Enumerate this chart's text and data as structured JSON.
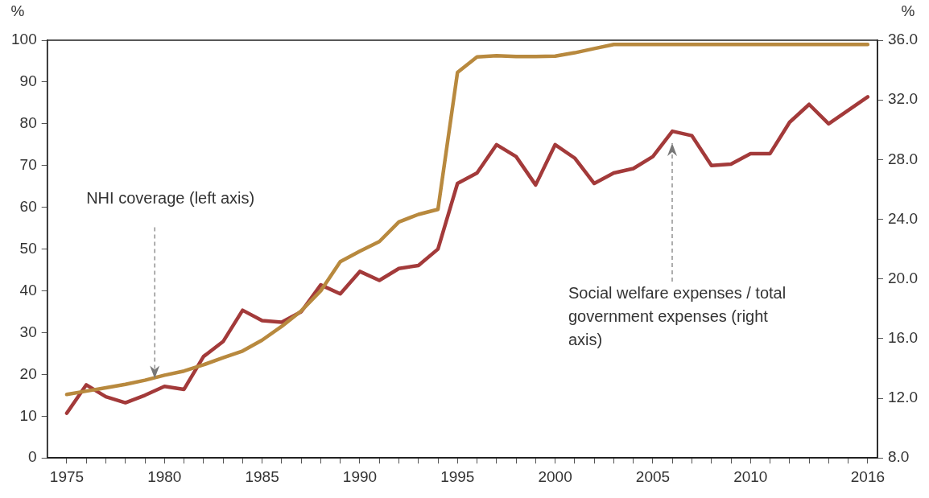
{
  "chart_data": {
    "type": "line",
    "x": [
      1975,
      1976,
      1977,
      1978,
      1979,
      1980,
      1981,
      1982,
      1983,
      1984,
      1985,
      1986,
      1987,
      1988,
      1989,
      1990,
      1991,
      1992,
      1993,
      1994,
      1995,
      1996,
      1997,
      1998,
      1999,
      2000,
      2001,
      2002,
      2003,
      2004,
      2005,
      2006,
      2007,
      2008,
      2009,
      2010,
      2011,
      2012,
      2013,
      2014,
      2015,
      2016
    ],
    "series": [
      {
        "color": "#b8893e",
        "values": [
          15.2,
          16.0,
          16.8,
          17.6,
          18.6,
          19.8,
          20.8,
          22.3,
          24.0,
          25.6,
          28.2,
          31.5,
          35.2,
          40.0,
          47.0,
          49.5,
          51.8,
          56.5,
          58.3,
          59.5,
          92.3,
          96.0,
          96.3,
          96.1,
          96.1,
          96.2,
          97.0,
          98.0,
          99.0,
          99.0,
          99.0,
          99.0,
          99.0,
          99.0,
          99.0,
          99.0,
          99.0,
          99.0,
          99.0,
          99.0,
          99.0,
          99.0
        ]
      },
      {
        "color": "#a33a3a",
        "axis": "y2",
        "values": [
          11.0,
          12.9,
          12.1,
          11.7,
          12.2,
          12.8,
          12.6,
          14.8,
          15.8,
          17.9,
          17.2,
          17.1,
          17.8,
          19.6,
          19.0,
          20.5,
          19.9,
          20.7,
          20.9,
          22.0,
          26.4,
          27.1,
          29.0,
          28.2,
          26.3,
          29.0,
          28.1,
          26.4,
          27.1,
          27.4,
          28.2,
          29.9,
          29.6,
          27.6,
          27.7,
          28.4,
          28.4,
          30.5,
          31.7,
          30.4,
          31.3,
          32.2
        ]
      }
    ],
    "ylabel": "%",
    "y2label": "%",
    "xlim": [
      1974,
      2016.5
    ],
    "xticks": [
      1975,
      {
        "value": 1976,
        "label": null
      },
      {
        "value": 1977,
        "label": null
      },
      {
        "value": 1978,
        "label": null
      },
      {
        "value": 1979,
        "label": null
      },
      1980,
      {
        "value": 1981,
        "label": null
      },
      {
        "value": 1982,
        "label": null
      },
      {
        "value": 1983,
        "label": null
      },
      {
        "value": 1984,
        "label": null
      },
      1985,
      {
        "value": 1986,
        "label": null
      },
      {
        "value": 1987,
        "label": null
      },
      {
        "value": 1988,
        "label": null
      },
      {
        "value": 1989,
        "label": null
      },
      1990,
      {
        "value": 1991,
        "label": null
      },
      {
        "value": 1992,
        "label": null
      },
      {
        "value": 1993,
        "label": null
      },
      {
        "value": 1994,
        "label": null
      },
      1995,
      {
        "value": 1996,
        "label": null
      },
      {
        "value": 1997,
        "label": null
      },
      {
        "value": 1998,
        "label": null
      },
      {
        "value": 1999,
        "label": null
      },
      2000,
      {
        "value": 2001,
        "label": null
      },
      {
        "value": 2002,
        "label": null
      },
      {
        "value": 2003,
        "label": null
      },
      {
        "value": 2004,
        "label": null
      },
      2005,
      {
        "value": 2006,
        "label": null
      },
      {
        "value": 2007,
        "label": null
      },
      {
        "value": 2008,
        "label": null
      },
      {
        "value": 2009,
        "label": null
      },
      2010,
      {
        "value": 2011,
        "label": null
      },
      {
        "value": 2012,
        "label": null
      },
      {
        "value": 2013,
        "label": null
      },
      {
        "value": 2014,
        "label": null
      },
      {
        "value": 2015,
        "label": null
      },
      2016
    ],
    "ylim": [
      0,
      100
    ],
    "yticks": [
      0,
      10,
      20,
      30,
      40,
      50,
      60,
      70,
      80,
      90,
      100
    ],
    "y2lim": [
      8,
      36
    ],
    "y2ticks": [
      {
        "value": 8,
        "label": "8.0"
      },
      {
        "value": 12,
        "label": "12.0"
      },
      {
        "value": 16,
        "label": "16.0"
      },
      {
        "value": 20,
        "label": "20.0"
      },
      {
        "value": 24,
        "label": "24.0"
      },
      {
        "value": 28,
        "label": "28.0"
      },
      {
        "value": 32,
        "label": "32.0"
      },
      {
        "value": 36,
        "label": "36.0"
      }
    ],
    "annotations": [
      {
        "text": "NHI coverage (left axis)",
        "x": 1979.5,
        "y": 19
      },
      "Social welfare expenses / total government expenses (right axis)"
    ],
    "marker": "none",
    "line_style": "solid",
    "grid": false,
    "legend": false
  }
}
